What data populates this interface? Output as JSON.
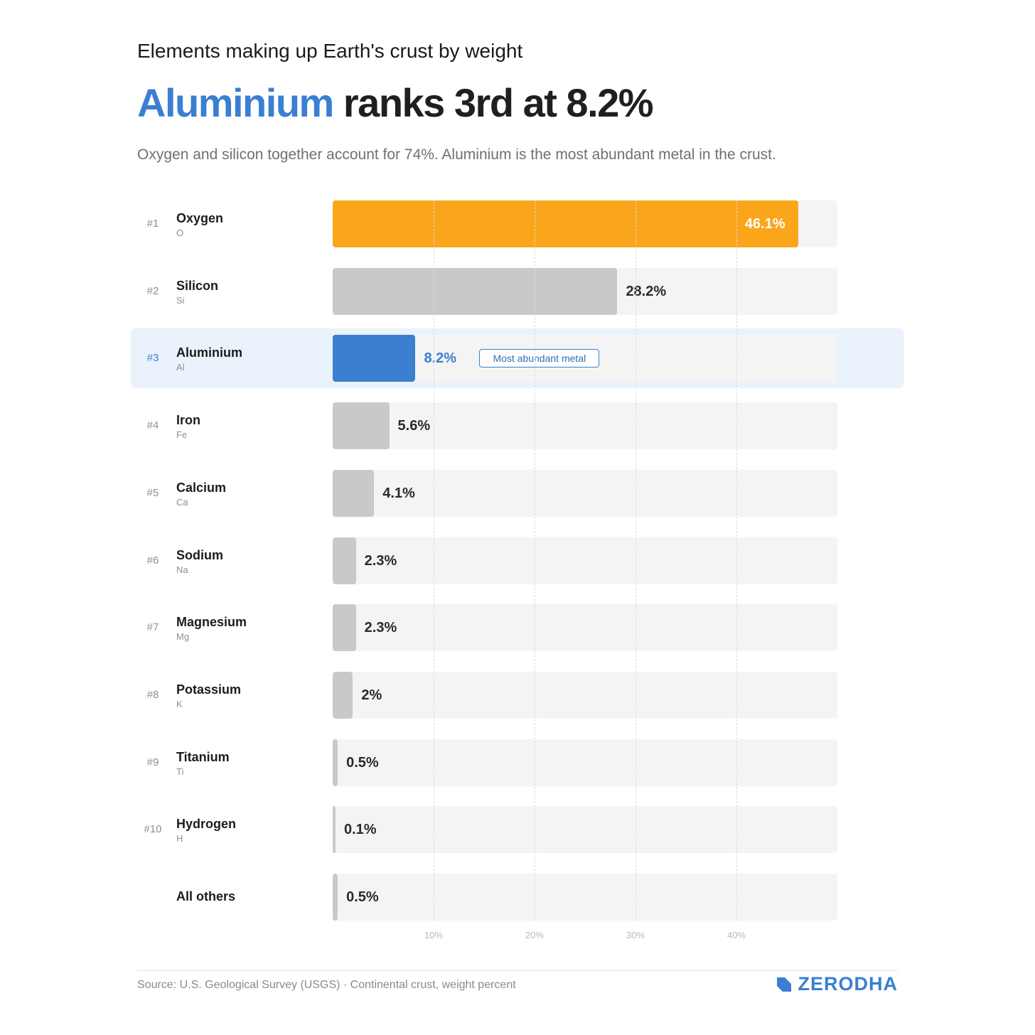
{
  "header": {
    "supertitle": "Elements making up Earth's crust by weight",
    "headline_highlight": "Aluminium",
    "headline_rest": " ranks 3rd at 8.2%",
    "subtitle": "Oxygen and silicon together account for 74%. Aluminium is the most abundant metal in the crust."
  },
  "chart_data": {
    "type": "bar",
    "orientation": "horizontal",
    "xlim": [
      0,
      50
    ],
    "x_ticks": [
      10,
      20,
      30,
      40
    ],
    "x_tick_labels": [
      "10%",
      "20%",
      "30%",
      "40%"
    ],
    "grid": true,
    "categories": [
      "Oxygen",
      "Silicon",
      "Aluminium",
      "Iron",
      "Calcium",
      "Sodium",
      "Magnesium",
      "Potassium",
      "Titanium",
      "Hydrogen",
      "All others"
    ],
    "rows": [
      {
        "rank": "#1",
        "name": "Oxygen",
        "symbol": "O",
        "value": 46.1,
        "label": "46.1%",
        "color": "#fba51a"
      },
      {
        "rank": "#2",
        "name": "Silicon",
        "symbol": "Si",
        "value": 28.2,
        "label": "28.2%",
        "color": "#c9c9c9"
      },
      {
        "rank": "#3",
        "name": "Aluminium",
        "symbol": "Al",
        "value": 8.2,
        "label": "8.2%",
        "color": "#3a7fd0",
        "highlight": true,
        "badge": "Most abundant metal"
      },
      {
        "rank": "#4",
        "name": "Iron",
        "symbol": "Fe",
        "value": 5.6,
        "label": "5.6%",
        "color": "#c9c9c9"
      },
      {
        "rank": "#5",
        "name": "Calcium",
        "symbol": "Ca",
        "value": 4.1,
        "label": "4.1%",
        "color": "#c9c9c9"
      },
      {
        "rank": "#6",
        "name": "Sodium",
        "symbol": "Na",
        "value": 2.3,
        "label": "2.3%",
        "color": "#c9c9c9"
      },
      {
        "rank": "#7",
        "name": "Magnesium",
        "symbol": "Mg",
        "value": 2.3,
        "label": "2.3%",
        "color": "#c9c9c9"
      },
      {
        "rank": "#8",
        "name": "Potassium",
        "symbol": "K",
        "value": 2,
        "label": "2%",
        "color": "#c9c9c9"
      },
      {
        "rank": "#9",
        "name": "Titanium",
        "symbol": "Ti",
        "value": 0.5,
        "label": "0.5%",
        "color": "#c9c9c9"
      },
      {
        "rank": "#10",
        "name": "Hydrogen",
        "symbol": "H",
        "value": 0.1,
        "label": "0.1%",
        "color": "#c9c9c9"
      },
      {
        "rank": "",
        "name": "All others",
        "symbol": "",
        "value": 0.5,
        "label": "0.5%",
        "color": "#c9c9c9"
      }
    ]
  },
  "footer": {
    "source": "Source: U.S. Geological Survey (USGS) · Continental crust, weight percent",
    "brand": "ZERODHA",
    "brand_icon": "zerodha-logo-icon",
    "brand_color": "#3a7fd0"
  }
}
